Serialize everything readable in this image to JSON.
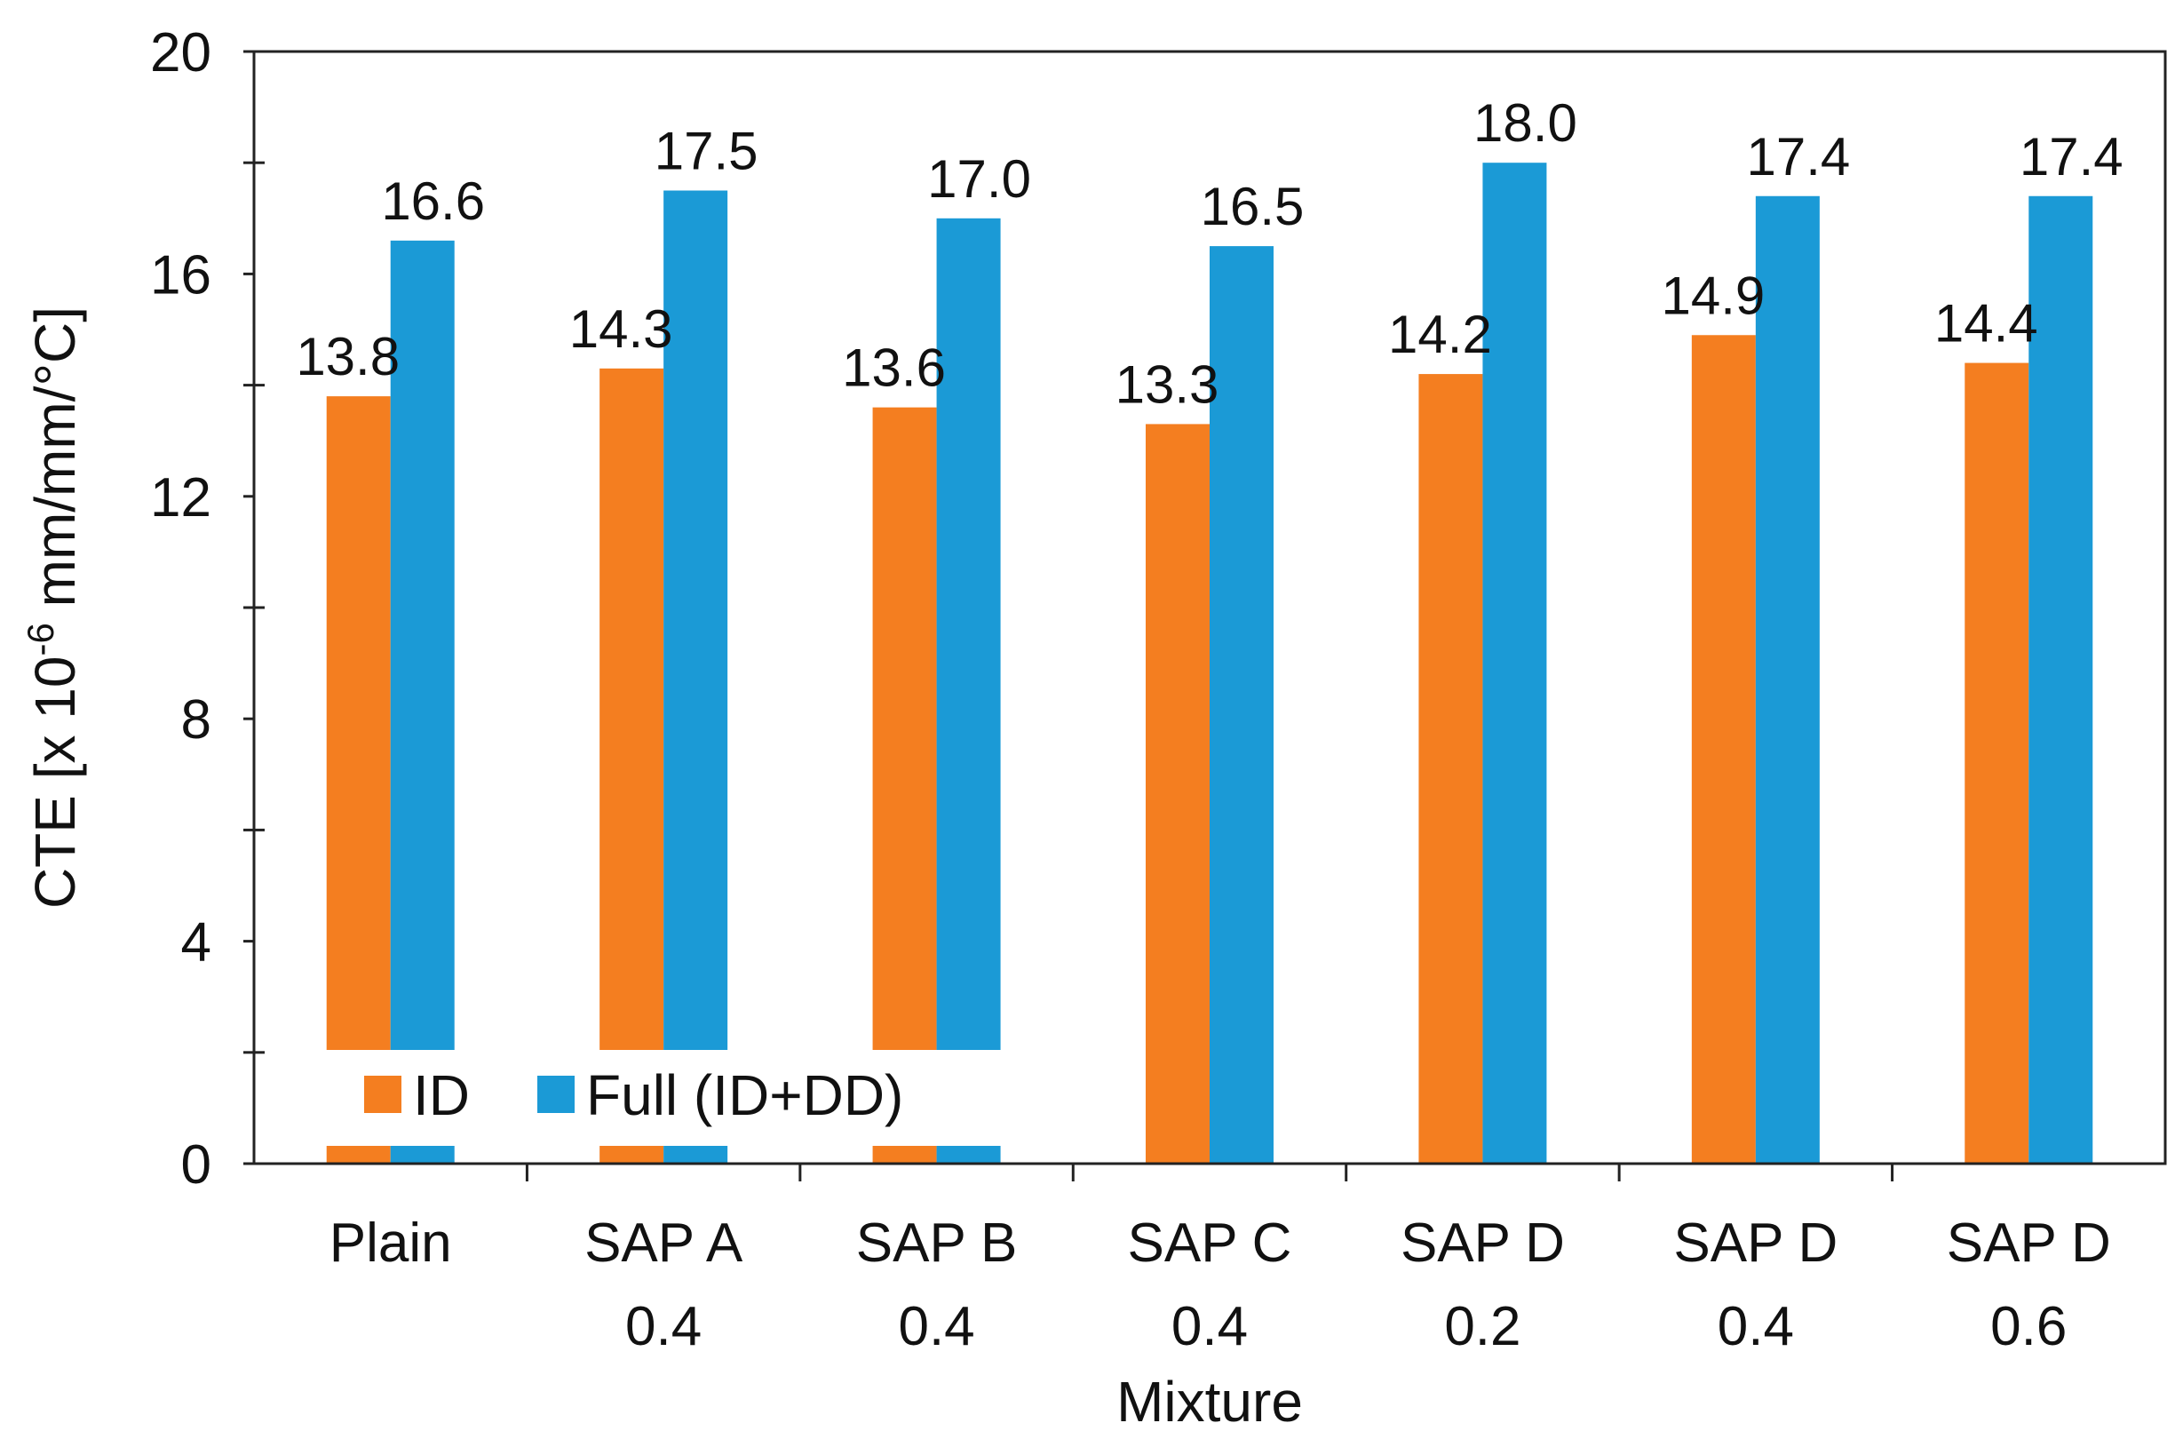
{
  "chart_data": {
    "type": "bar",
    "title": "",
    "xlabel": "Mixture",
    "ylabel": {
      "prefix": "CTE [x 10",
      "exponent": "-6",
      "suffix": " mm/mm/°C]"
    },
    "ylim": [
      0,
      20
    ],
    "yticks": [
      0,
      4,
      8,
      12,
      16,
      20
    ],
    "categories": [
      [
        "Plain"
      ],
      [
        "SAP A",
        "0.4"
      ],
      [
        "SAP B",
        "0.4"
      ],
      [
        "SAP C",
        "0.4"
      ],
      [
        "SAP D",
        "0.2"
      ],
      [
        "SAP D",
        "0.4"
      ],
      [
        "SAP D",
        "0.6"
      ]
    ],
    "series": [
      {
        "name": "ID",
        "color": "#F47E20",
        "values": [
          13.8,
          14.3,
          13.6,
          13.3,
          14.2,
          14.9,
          14.4
        ],
        "labels": [
          "13.8",
          "14.3",
          "13.6",
          "13.3",
          "14.2",
          "14.9",
          "14.4"
        ]
      },
      {
        "name": "Full (ID+DD)",
        "color": "#1B9AD6",
        "values": [
          16.6,
          17.5,
          17.0,
          16.5,
          18.0,
          17.4,
          17.4
        ],
        "labels": [
          "16.6",
          "17.5",
          "17.0",
          "16.5",
          "18.0",
          "17.4",
          "17.4"
        ]
      }
    ],
    "grid": false,
    "legend_position": "bottom-left"
  }
}
